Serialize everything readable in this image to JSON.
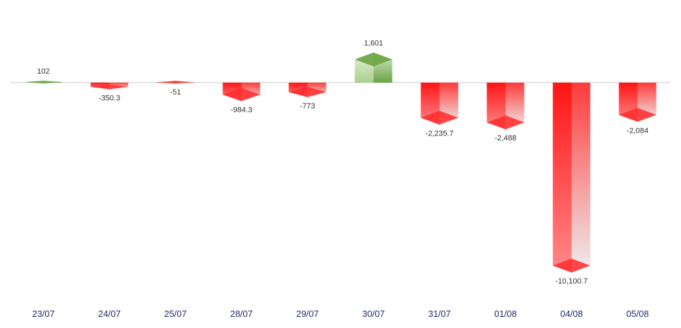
{
  "chart_data": {
    "type": "bar",
    "style": "3d-column",
    "title": "",
    "xlabel": "",
    "ylabel": "",
    "categories": [
      "23/07",
      "24/07",
      "25/07",
      "28/07",
      "29/07",
      "30/07",
      "31/07",
      "01/08",
      "04/08",
      "05/08"
    ],
    "values": [
      102,
      -350.3,
      -51,
      -984.3,
      -773,
      1601,
      -2235.7,
      -2488,
      -10100.7,
      -2084
    ],
    "data_labels": [
      "102",
      "-350.3",
      "-51",
      "-984.3",
      "-773",
      "1,601",
      "-2,235.7",
      "-2,488",
      "-10,100.7",
      "-2,084"
    ],
    "ylim": [
      -11500,
      3100
    ],
    "grid": false,
    "legend": "none",
    "colors": {
      "positive": "#7fb65a",
      "positive_light": "#eaf3e3",
      "negative": "#ff1a1a",
      "negative_light": "#f4f4f4",
      "axis_line": "#c8c8c8",
      "tick_text": "#1f2a6b",
      "label_text": "#333333"
    }
  }
}
